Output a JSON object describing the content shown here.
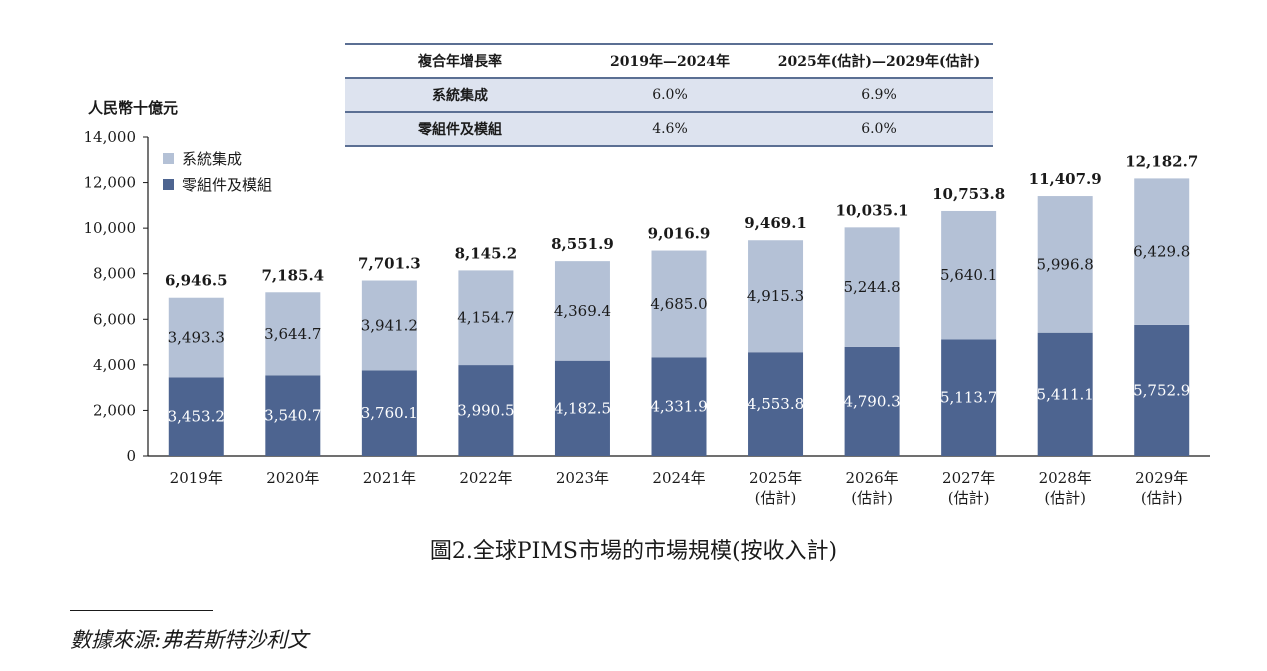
{
  "cagr_table": {
    "header": [
      "複合年增長率",
      "2019年—2024年",
      "2025年(估計)—2029年(估計)"
    ],
    "rows": [
      {
        "label": "系統集成",
        "v1": "6.0%",
        "v2": "6.9%"
      },
      {
        "label": "零組件及模組",
        "v1": "4.6%",
        "v2": "6.0%"
      }
    ]
  },
  "caption": "圖2.全球PIMS市場的市場規模(按收入計)",
  "source": "數據來源:弗若斯特沙利文",
  "colors": {
    "system_integration": "#b4c1d6",
    "components": "#4d6490",
    "table_bg": "#dde3ef",
    "table_rule": "#5b6f93"
  },
  "chart_data": {
    "type": "bar",
    "stacked": true,
    "ylabel": "人民幣十億元",
    "ylim": [
      0,
      14000
    ],
    "yticks": [
      "0",
      "2,000",
      "4,000",
      "6,000",
      "8,000",
      "10,000",
      "12,000",
      "14,000"
    ],
    "yticks_values": [
      0,
      2000,
      4000,
      6000,
      8000,
      10000,
      12000,
      14000
    ],
    "grid": false,
    "legend_position": "top-left",
    "categories": [
      [
        "2019年"
      ],
      [
        "2020年"
      ],
      [
        "2021年"
      ],
      [
        "2022年"
      ],
      [
        "2023年"
      ],
      [
        "2024年"
      ],
      [
        "2025年",
        "(估計)"
      ],
      [
        "2026年",
        "(估計)"
      ],
      [
        "2027年",
        "(估計)"
      ],
      [
        "2028年",
        "(估計)"
      ],
      [
        "2029年",
        "(估計)"
      ]
    ],
    "totals": [
      "6,946.5",
      "7,185.4",
      "7,701.3",
      "8,145.2",
      "8,551.9",
      "9,016.9",
      "9,469.1",
      "10,035.1",
      "10,753.8",
      "11,407.9",
      "12,182.7"
    ],
    "series": [
      {
        "name": "零組件及模組",
        "values": [
          3453.2,
          3540.7,
          3760.1,
          3990.5,
          4182.5,
          4331.9,
          4553.8,
          4790.3,
          5113.7,
          5411.1,
          5752.9
        ],
        "labels": [
          "3,453.2",
          "3,540.7",
          "3,760.1",
          "3,990.5",
          "4,182.5",
          "4,331.9",
          "4,553.8",
          "4,790.3",
          "5,113.7",
          "5,411.1",
          "5,752.9"
        ]
      },
      {
        "name": "系統集成",
        "values": [
          3493.3,
          3644.7,
          3941.2,
          4154.7,
          4369.4,
          4685.0,
          4915.3,
          5244.8,
          5640.1,
          5996.8,
          6429.8
        ],
        "labels": [
          "3,493.3",
          "3,644.7",
          "3,941.2",
          "4,154.7",
          "4,369.4",
          "4,685.0",
          "4,915.3",
          "5,244.8",
          "5,640.1",
          "5,996.8",
          "6,429.8"
        ]
      }
    ]
  }
}
